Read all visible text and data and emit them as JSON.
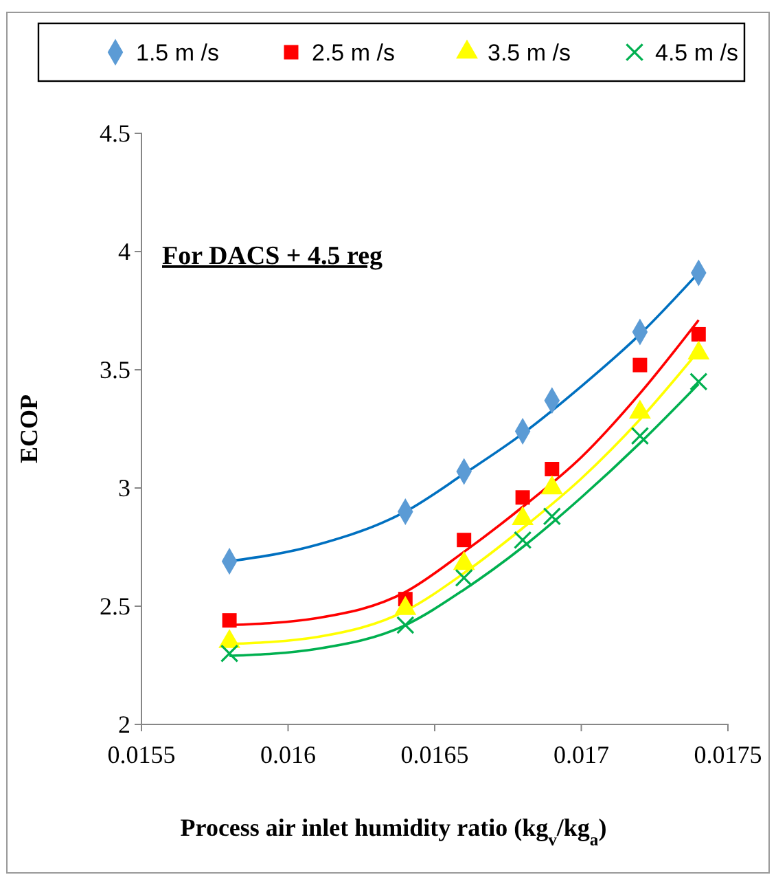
{
  "chart_data": {
    "type": "scatter",
    "xlabel": "Process air inlet humidity ratio (kg$_{v}$/kg$_{a}$)",
    "ylabel": "ECOP",
    "annotations": [
      "For DACS + 4.5 reg"
    ],
    "xlim": [
      0.0155,
      0.0175
    ],
    "xticks": [
      0.0155,
      0.016,
      0.0165,
      0.017,
      0.0175
    ],
    "ylim": [
      2,
      4.5
    ],
    "yticks": [
      2,
      2.5,
      3,
      3.5,
      4,
      4.5
    ],
    "legend": "top",
    "grid": false,
    "series": [
      {
        "name": "1.5 m /s",
        "color": "#5b9bd5",
        "marker": "diamond",
        "x": [
          0.0158,
          0.0164,
          0.0166,
          0.0168,
          0.0169,
          0.0172,
          0.0174
        ],
        "values": [
          2.69,
          2.9,
          3.07,
          3.24,
          3.37,
          3.66,
          3.91
        ]
      },
      {
        "name": "2.5 m /s",
        "color": "#ff0000",
        "marker": "square",
        "x": [
          0.0158,
          0.0164,
          0.0166,
          0.0168,
          0.0169,
          0.0172,
          0.0174
        ],
        "values": [
          2.44,
          2.53,
          2.78,
          2.96,
          3.08,
          3.52,
          3.65
        ]
      },
      {
        "name": "3.5 m /s",
        "color": "#ffff00",
        "marker": "triangle",
        "x": [
          0.0158,
          0.0164,
          0.0166,
          0.0168,
          0.0169,
          0.0172,
          0.0174
        ],
        "values": [
          2.35,
          2.49,
          2.68,
          2.87,
          3.0,
          3.32,
          3.57
        ]
      },
      {
        "name": "4.5 m /s",
        "color": "#00b050",
        "marker": "cross",
        "x": [
          0.0158,
          0.0164,
          0.0166,
          0.0168,
          0.0169,
          0.0172,
          0.0174
        ],
        "values": [
          2.3,
          2.42,
          2.62,
          2.78,
          2.88,
          3.22,
          3.45
        ]
      },
      {
        "type": "line",
        "color": "#0070c0",
        "marker": "none",
        "x": [
          0.0158,
          0.0161,
          0.0164,
          0.0166,
          0.0168,
          0.017,
          0.0172,
          0.0174
        ],
        "values": [
          2.69,
          2.76,
          2.9,
          3.06,
          3.23,
          3.43,
          3.65,
          3.91
        ]
      },
      {
        "type": "line",
        "color": "#ff0000",
        "marker": "none",
        "x": [
          0.0158,
          0.0161,
          0.0164,
          0.0166,
          0.0168,
          0.017,
          0.0172,
          0.0174
        ],
        "values": [
          2.42,
          2.45,
          2.56,
          2.73,
          2.92,
          3.13,
          3.4,
          3.71
        ]
      },
      {
        "type": "line",
        "color": "#ffff00",
        "marker": "none",
        "x": [
          0.0158,
          0.0161,
          0.0164,
          0.0166,
          0.0168,
          0.017,
          0.0172,
          0.0174
        ],
        "values": [
          2.34,
          2.37,
          2.48,
          2.64,
          2.83,
          3.04,
          3.29,
          3.58
        ]
      },
      {
        "type": "line",
        "color": "#00b050",
        "marker": "none",
        "x": [
          0.0158,
          0.0161,
          0.0164,
          0.0166,
          0.0168,
          0.017,
          0.0172,
          0.0174
        ],
        "values": [
          2.29,
          2.32,
          2.42,
          2.57,
          2.75,
          2.96,
          3.19,
          3.44
        ]
      }
    ]
  }
}
